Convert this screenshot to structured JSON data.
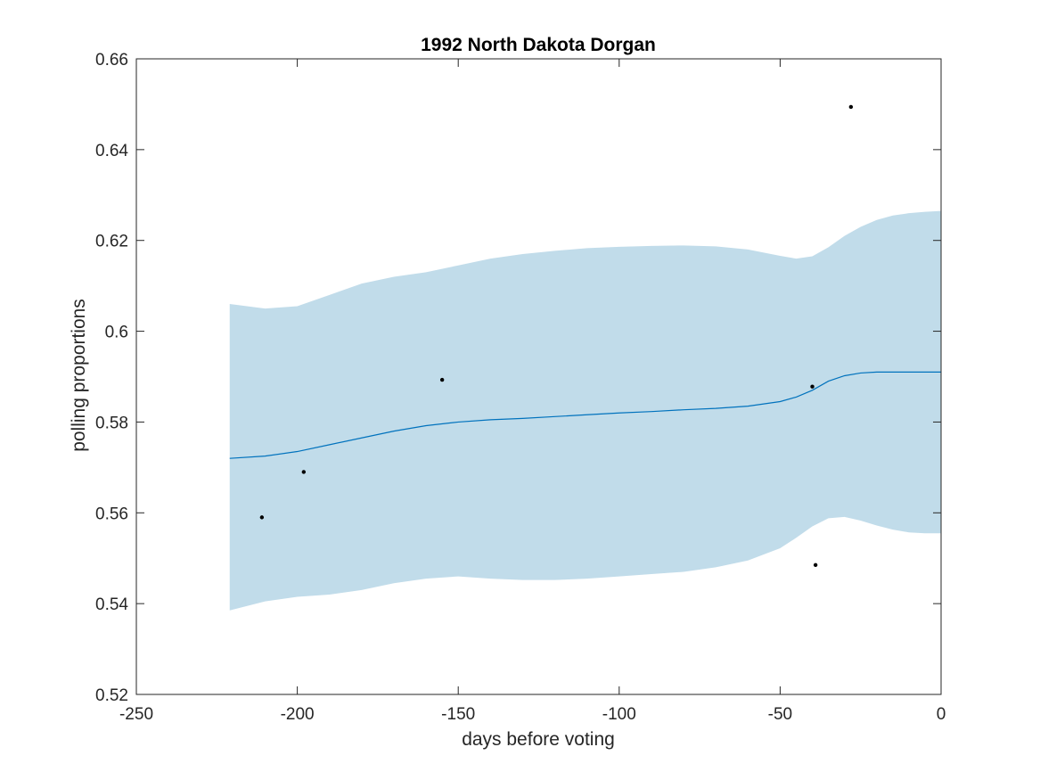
{
  "chart_data": {
    "type": "line",
    "title": "1992 North Dakota Dorgan",
    "xlabel": "days before voting",
    "ylabel": "polling proportions",
    "xlim": [
      -250,
      0
    ],
    "ylim": [
      0.52,
      0.66
    ],
    "xticks": [
      -250,
      -200,
      -150,
      -100,
      -50,
      0
    ],
    "xtick_labels": [
      "-250",
      "-200",
      "-150",
      "-100",
      "-50",
      "0"
    ],
    "yticks": [
      0.52,
      0.54,
      0.56,
      0.58,
      0.6,
      0.62,
      0.64,
      0.66
    ],
    "ytick_labels": [
      "0.52",
      "0.54",
      "0.56",
      "0.58",
      "0.6",
      "0.62",
      "0.64",
      "0.66"
    ],
    "grid": false,
    "colors": {
      "band": "#c1dcea",
      "line": "#0072bd",
      "points": "#000000",
      "axes": "#262626"
    },
    "trend": {
      "x": [
        -221,
        -210,
        -200,
        -190,
        -180,
        -170,
        -160,
        -150,
        -140,
        -130,
        -120,
        -110,
        -100,
        -90,
        -80,
        -70,
        -60,
        -50,
        -45,
        -40,
        -35,
        -30,
        -25,
        -20,
        -15,
        -10,
        -5,
        0
      ],
      "y": [
        0.572,
        0.5725,
        0.5735,
        0.575,
        0.5765,
        0.578,
        0.5792,
        0.58,
        0.5805,
        0.5808,
        0.5812,
        0.5816,
        0.582,
        0.5823,
        0.5827,
        0.583,
        0.5835,
        0.5845,
        0.5855,
        0.587,
        0.589,
        0.5902,
        0.5908,
        0.591,
        0.591,
        0.591,
        0.591,
        0.591
      ],
      "upper": [
        0.606,
        0.605,
        0.6055,
        0.608,
        0.6105,
        0.612,
        0.613,
        0.6145,
        0.616,
        0.617,
        0.6177,
        0.6183,
        0.6186,
        0.6188,
        0.6189,
        0.6187,
        0.618,
        0.6166,
        0.616,
        0.6165,
        0.6185,
        0.621,
        0.623,
        0.6245,
        0.6255,
        0.626,
        0.6263,
        0.6265
      ],
      "lower": [
        0.5385,
        0.5405,
        0.5415,
        0.542,
        0.543,
        0.5445,
        0.5455,
        0.546,
        0.5455,
        0.5452,
        0.5452,
        0.5455,
        0.546,
        0.5465,
        0.547,
        0.548,
        0.5495,
        0.5522,
        0.5545,
        0.557,
        0.5588,
        0.5591,
        0.5583,
        0.5572,
        0.5563,
        0.5557,
        0.5555,
        0.5555
      ]
    },
    "points": {
      "x": [
        -211,
        -198,
        -155,
        -40,
        -39,
        -28
      ],
      "y": [
        0.559,
        0.569,
        0.5893,
        0.5878,
        0.5485,
        0.6494
      ]
    }
  }
}
